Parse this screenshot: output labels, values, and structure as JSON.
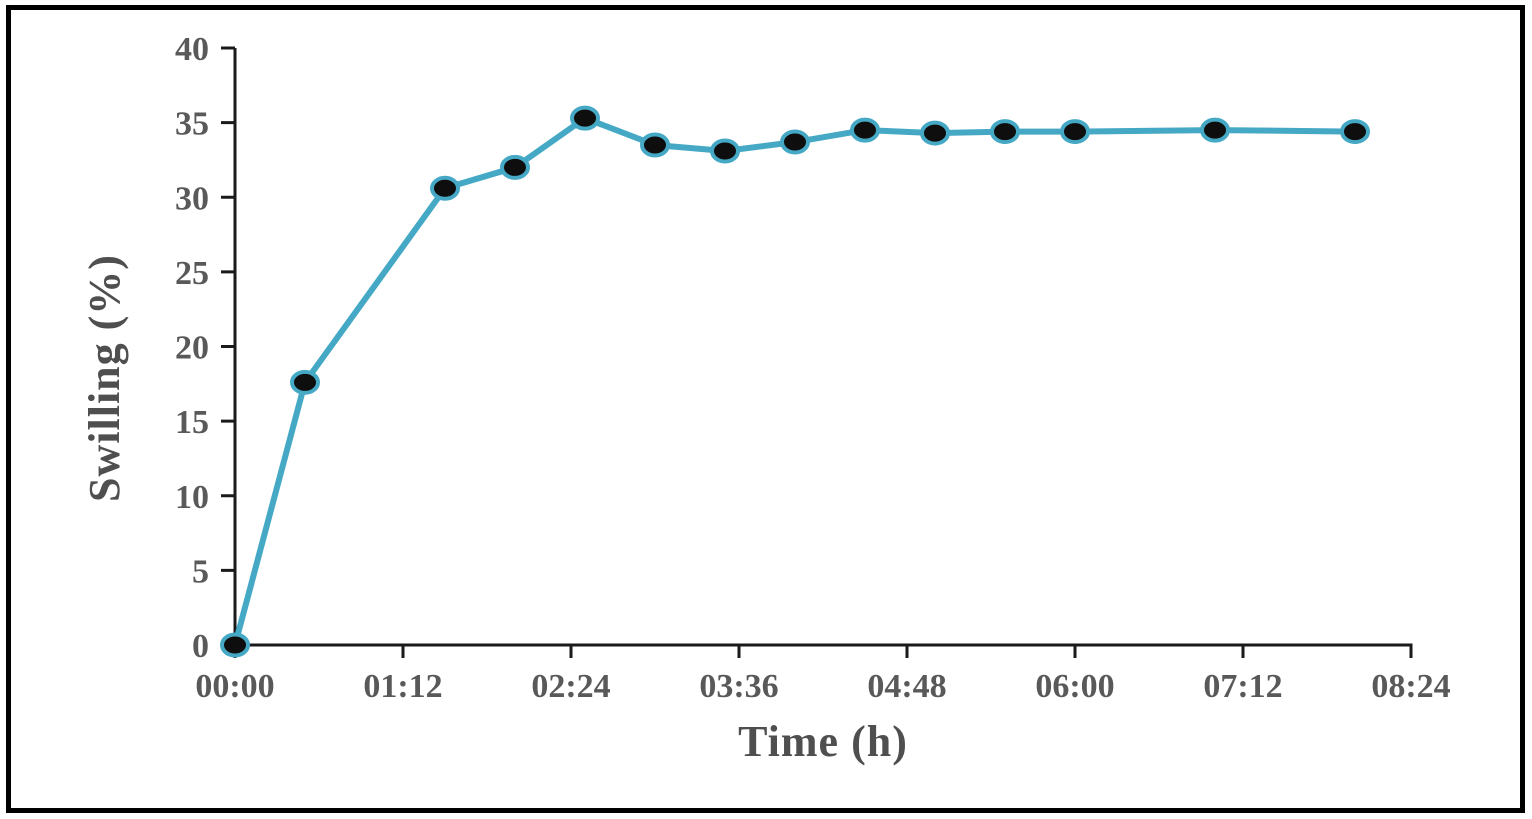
{
  "figure": {
    "background": "#ffffff",
    "border_color": "#000000"
  },
  "chart_data": {
    "type": "line",
    "title": "",
    "xlabel": "Time (h)",
    "ylabel": "Swilling (%)",
    "xlim": [
      0,
      8.4
    ],
    "ylim": [
      0,
      40
    ],
    "grid": false,
    "legend": false,
    "y_ticks": [
      0,
      5,
      10,
      15,
      20,
      25,
      30,
      35,
      40
    ],
    "x_ticks": [
      {
        "hours": 0.0,
        "label": "00:00"
      },
      {
        "hours": 1.2,
        "label": "01:12"
      },
      {
        "hours": 2.4,
        "label": "02:24"
      },
      {
        "hours": 3.6,
        "label": "03:36"
      },
      {
        "hours": 4.8,
        "label": "04:48"
      },
      {
        "hours": 6.0,
        "label": "06:00"
      },
      {
        "hours": 7.2,
        "label": "07:12"
      },
      {
        "hours": 8.4,
        "label": "08:24"
      }
    ],
    "series": [
      {
        "name": "Swilling (%)",
        "x_hours": [
          0,
          0.5,
          1.5,
          2,
          2.5,
          3,
          3.5,
          4,
          4.5,
          5,
          5.5,
          6,
          7,
          8
        ],
        "values": [
          0,
          17.6,
          30.6,
          32.0,
          35.3,
          33.5,
          33.1,
          33.7,
          34.5,
          34.3,
          34.4,
          34.4,
          34.5,
          34.4
        ],
        "line_color": "#45A9C6",
        "marker_fill": "#0e0e0e",
        "marker_stroke": "#45A9C6"
      }
    ],
    "axis_color": "#1a1a1a",
    "tick_label_color": "#595959",
    "axis_title_color": "#4f4f4f"
  }
}
